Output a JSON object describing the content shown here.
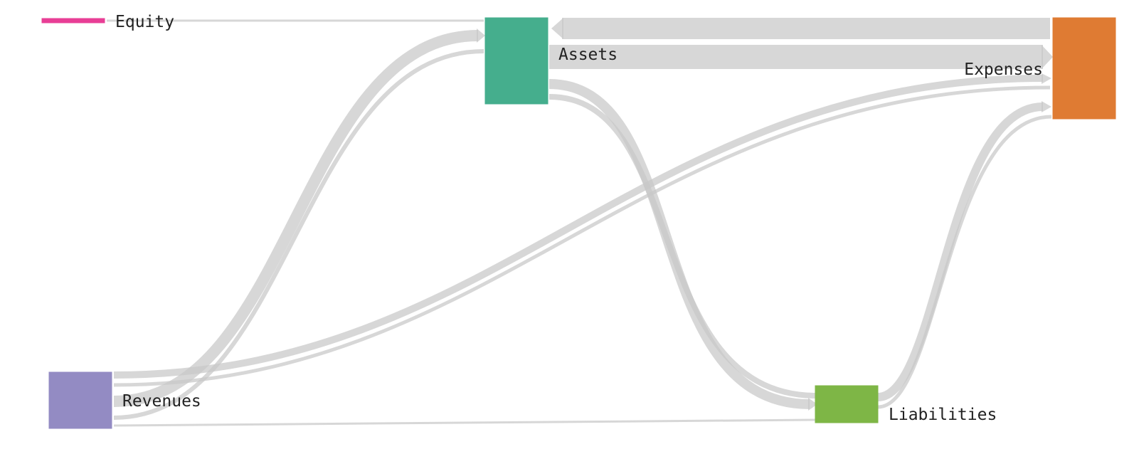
{
  "diagram": {
    "type": "sankey",
    "link_color": "#c8c8c8",
    "nodes": [
      {
        "id": "equity",
        "label": "Equity",
        "color": "#e83e96"
      },
      {
        "id": "assets",
        "label": "Assets",
        "color": "#45ae8d"
      },
      {
        "id": "expenses",
        "label": "Expenses",
        "color": "#df7b33"
      },
      {
        "id": "revenues",
        "label": "Revenues",
        "color": "#938bc3"
      },
      {
        "id": "liabilities",
        "label": "Liabilities",
        "color": "#7eb646"
      }
    ],
    "links": [
      {
        "id": "equity-assets",
        "source": "Equity",
        "target": "Assets"
      },
      {
        "id": "revenues-assets",
        "source": "Revenues",
        "target": "Assets"
      },
      {
        "id": "revenues-expenses",
        "source": "Revenues",
        "target": "Expenses"
      },
      {
        "id": "revenues-liabilities",
        "source": "Revenues",
        "target": "Liabilities"
      },
      {
        "id": "assets-expenses",
        "source": "Assets",
        "target": "Expenses"
      },
      {
        "id": "expenses-assets",
        "source": "Expenses",
        "target": "Assets"
      },
      {
        "id": "assets-liabilities",
        "source": "Assets",
        "target": "Liabilities"
      },
      {
        "id": "liabilities-expenses",
        "source": "Liabilities",
        "target": "Expenses"
      }
    ]
  }
}
